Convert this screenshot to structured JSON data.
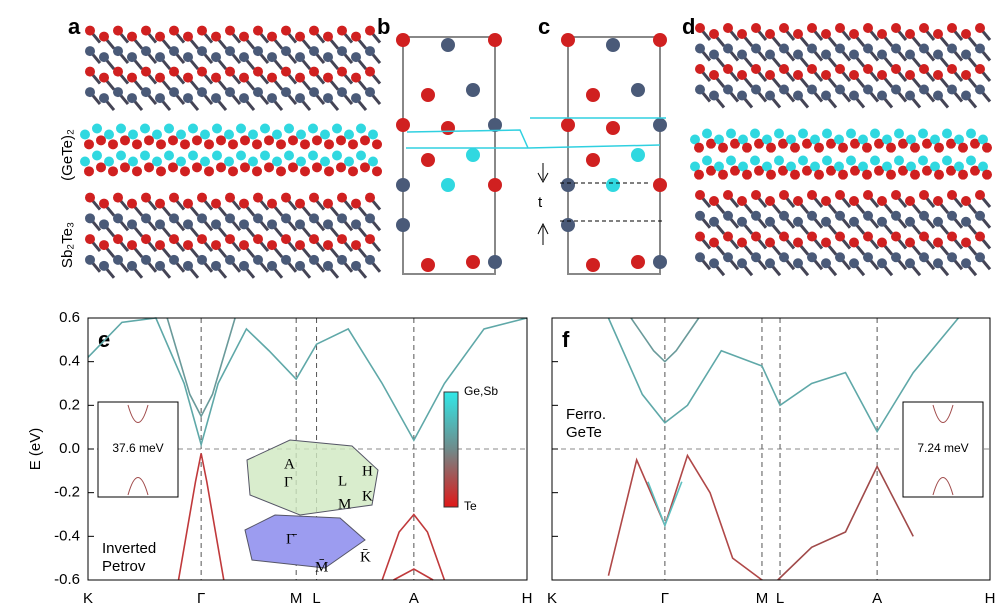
{
  "panel_labels": [
    "a",
    "b",
    "c",
    "d",
    "e",
    "f"
  ],
  "structure_labels": {
    "gete": "(GeTe)₂",
    "sbte": "Sb₂Te₃",
    "t": "t"
  },
  "chart_data": [
    {
      "type": "line",
      "ylabel": "E (eV)",
      "xlim": [
        0,
        3.88
      ],
      "ylim": [
        -0.6,
        0.6
      ],
      "xticks": [
        {
          "value": 0,
          "label": "K"
        },
        {
          "value": 1,
          "label": "Γ"
        },
        {
          "value": 1.84,
          "label": "M"
        },
        {
          "value": 2.02,
          "label": "L"
        },
        {
          "value": 2.88,
          "label": "A"
        },
        {
          "value": 3.88,
          "label": "H"
        }
      ],
      "yticks": [
        0.6,
        0.4,
        0.2,
        {
          "value": 0,
          "label": "0.0"
        },
        -0.2,
        -0.4,
        -0.6
      ],
      "annotation": [
        "Inverted",
        "Petrov"
      ],
      "inset_label": "37.6 meV",
      "colorbar_labels": [
        "Ge,Sb",
        "Te"
      ],
      "bz_labels": [
        "A",
        "Γ",
        "L",
        "H",
        "K",
        "M",
        "Γ̄",
        "M̄",
        "K̄"
      ],
      "series": [
        {
          "color": "#5fa8a8",
          "x": [
            0,
            0.3,
            0.6,
            0.85,
            1,
            1.15,
            1.4,
            1.6,
            1.84,
            2.02,
            2.3,
            2.6,
            2.88,
            3.15,
            3.5,
            3.88
          ],
          "values": [
            0.42,
            0.58,
            0.6,
            0.3,
            0.02,
            0.3,
            0.55,
            0.45,
            0.32,
            0.48,
            0.55,
            0.3,
            0.04,
            0.3,
            0.55,
            0.6
          ]
        },
        {
          "color": "#6a9a9a",
          "x": [
            0.7,
            0.9,
            1,
            1.1,
            1.3
          ],
          "values": [
            0.6,
            0.25,
            0.15,
            0.25,
            0.6
          ]
        },
        {
          "color": "#c0393b",
          "x": [
            0.8,
            0.95,
            1,
            1.05,
            1.2
          ],
          "values": [
            -0.6,
            -0.15,
            -0.02,
            -0.15,
            -0.6
          ]
        },
        {
          "color": "#c0393b",
          "x": [
            2.6,
            2.75,
            2.88,
            3.0,
            3.15
          ],
          "values": [
            -0.6,
            -0.38,
            -0.3,
            -0.38,
            -0.6
          ]
        },
        {
          "color": "#c0393b",
          "x": [
            2.7,
            2.88,
            3.05
          ],
          "values": [
            -0.6,
            -0.55,
            -0.6
          ]
        }
      ]
    },
    {
      "type": "line",
      "xlim": [
        0,
        3.88
      ],
      "ylim": [
        -0.6,
        0.6
      ],
      "xticks": [
        {
          "value": 0,
          "label": "K"
        },
        {
          "value": 1,
          "label": "Γ"
        },
        {
          "value": 1.86,
          "label": "M"
        },
        {
          "value": 2.02,
          "label": "L"
        },
        {
          "value": 2.88,
          "label": "A"
        },
        {
          "value": 3.88,
          "label": "H"
        }
      ],
      "yticks": [
        0.6,
        0.4,
        0.2,
        {
          "value": 0,
          "label": "0.0"
        },
        -0.2,
        -0.4,
        -0.6
      ],
      "annotation": [
        "Ferro.",
        "GeTe"
      ],
      "inset_label": "7.24 meV",
      "series": [
        {
          "color": "#5fa8a8",
          "x": [
            0.5,
            0.8,
            1,
            1.2,
            1.5,
            1.86,
            2.02,
            2.3,
            2.6,
            2.88,
            3.2,
            3.6
          ],
          "values": [
            0.6,
            0.25,
            0.12,
            0.2,
            0.45,
            0.38,
            0.2,
            0.3,
            0.35,
            0.08,
            0.35,
            0.6
          ]
        },
        {
          "color": "#6a9a9a",
          "x": [
            0.7,
            0.9,
            1,
            1.1,
            1.3
          ],
          "values": [
            0.6,
            0.45,
            0.4,
            0.45,
            0.6
          ]
        },
        {
          "color": "#b04848",
          "x": [
            0.5,
            0.75,
            1,
            1.2,
            1.4,
            1.6,
            1.86
          ],
          "values": [
            -0.58,
            -0.05,
            -0.35,
            -0.03,
            -0.2,
            -0.5,
            -0.6
          ]
        },
        {
          "color": "#5fc0c0",
          "x": [
            0.85,
            1,
            1.15
          ],
          "values": [
            -0.15,
            -0.35,
            -0.15
          ]
        },
        {
          "color": "#a04a4a",
          "x": [
            2.0,
            2.3,
            2.6,
            2.88,
            3.2
          ],
          "values": [
            -0.6,
            -0.45,
            -0.38,
            -0.08,
            -0.4
          ]
        }
      ]
    }
  ]
}
